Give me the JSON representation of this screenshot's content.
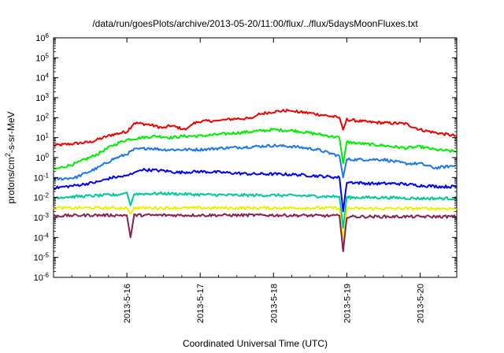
{
  "chart_data": {
    "type": "line",
    "title": "/data/run/goesPlots/archive/2013-05-20/11:00/flux/../flux/5daysMoonFluxes.txt",
    "xlabel": "Coordinated Universal Time (UTC)",
    "ylabel": "protons/cm2-s-sr-MeV",
    "ylabel_parts": {
      "pre": "protons/cm",
      "sup": "2",
      "post": "-s-sr-MeV"
    },
    "yscale": "log",
    "ylim": [
      1e-06,
      1000000.0
    ],
    "xlim": [
      "2013-05-15 00:00",
      "2013-05-20 12:00"
    ],
    "grid": false,
    "x_ticks": [
      "2013-5-16",
      "2013-5-17",
      "2013-5-18",
      "2013-5-19",
      "2013-5-20"
    ],
    "y_ticks": [
      {
        "base": "10",
        "exp": "-6"
      },
      {
        "base": "10",
        "exp": "-5"
      },
      {
        "base": "10",
        "exp": "-4"
      },
      {
        "base": "10",
        "exp": "-3"
      },
      {
        "base": "10",
        "exp": "-2"
      },
      {
        "base": "10",
        "exp": "-1"
      },
      {
        "base": "10",
        "exp": "0"
      },
      {
        "base": "10",
        "exp": "1"
      },
      {
        "base": "10",
        "exp": "2"
      },
      {
        "base": "10",
        "exp": "3"
      },
      {
        "base": "10",
        "exp": "4"
      },
      {
        "base": "10",
        "exp": "5"
      },
      {
        "base": "10",
        "exp": "6"
      }
    ],
    "x_unit": "days since 2013-05-15 00:00 UTC",
    "series": [
      {
        "color": "#ee0000",
        "points": [
          [
            0,
            4
          ],
          [
            0.5,
            6
          ],
          [
            0.8,
            14
          ],
          [
            1.0,
            20
          ],
          [
            1.1,
            55
          ],
          [
            1.3,
            45
          ],
          [
            1.5,
            30
          ],
          [
            1.6,
            40
          ],
          [
            1.8,
            25
          ],
          [
            1.9,
            50
          ],
          [
            2.0,
            65
          ],
          [
            2.2,
            70
          ],
          [
            2.3,
            75
          ],
          [
            2.5,
            90
          ],
          [
            2.7,
            90
          ],
          [
            2.8,
            150
          ],
          [
            3.0,
            200
          ],
          [
            3.2,
            230
          ],
          [
            3.3,
            200
          ],
          [
            3.5,
            170
          ],
          [
            3.7,
            130
          ],
          [
            3.9,
            100
          ],
          [
            3.95,
            25
          ],
          [
            4.0,
            80
          ],
          [
            4.3,
            60
          ],
          [
            4.5,
            55
          ],
          [
            4.8,
            50
          ],
          [
            5.0,
            25
          ],
          [
            5.2,
            18
          ],
          [
            5.5,
            12
          ]
        ]
      },
      {
        "color": "#00ee00",
        "points": [
          [
            0,
            0.25
          ],
          [
            0.3,
            0.5
          ],
          [
            0.6,
            1.5
          ],
          [
            0.8,
            4
          ],
          [
            1.0,
            8
          ],
          [
            1.2,
            10
          ],
          [
            1.4,
            12
          ],
          [
            1.6,
            10
          ],
          [
            1.8,
            12
          ],
          [
            2.0,
            12
          ],
          [
            2.3,
            15
          ],
          [
            2.7,
            20
          ],
          [
            3.0,
            25
          ],
          [
            3.3,
            22
          ],
          [
            3.6,
            15
          ],
          [
            3.9,
            10
          ],
          [
            3.95,
            0.5
          ],
          [
            4.0,
            6
          ],
          [
            4.2,
            5
          ],
          [
            4.5,
            4
          ],
          [
            4.8,
            3
          ],
          [
            5.0,
            3.5
          ],
          [
            5.2,
            2.5
          ],
          [
            5.5,
            2
          ]
        ]
      },
      {
        "color": "#1e78e8",
        "points": [
          [
            0,
            0.08
          ],
          [
            0.3,
            0.1
          ],
          [
            0.6,
            0.3
          ],
          [
            0.8,
            0.8
          ],
          [
            1.0,
            1.5
          ],
          [
            1.1,
            2.5
          ],
          [
            1.3,
            3
          ],
          [
            1.5,
            2.5
          ],
          [
            1.7,
            2.5
          ],
          [
            2.0,
            2.5
          ],
          [
            2.3,
            3
          ],
          [
            2.7,
            3.5
          ],
          [
            3.0,
            4
          ],
          [
            3.3,
            3.5
          ],
          [
            3.6,
            2.5
          ],
          [
            3.9,
            1.2
          ],
          [
            3.95,
            0.1
          ],
          [
            4.0,
            0.8
          ],
          [
            4.3,
            0.8
          ],
          [
            4.5,
            0.8
          ],
          [
            4.8,
            0.5
          ],
          [
            5.0,
            0.5
          ],
          [
            5.2,
            0.3
          ],
          [
            5.5,
            0.4
          ]
        ]
      },
      {
        "color": "#0000ee",
        "points": [
          [
            0,
            0.03
          ],
          [
            0.3,
            0.04
          ],
          [
            0.6,
            0.06
          ],
          [
            0.8,
            0.1
          ],
          [
            1.0,
            0.12
          ],
          [
            1.1,
            0.18
          ],
          [
            1.2,
            0.25
          ],
          [
            1.5,
            0.22
          ],
          [
            1.7,
            0.18
          ],
          [
            2.0,
            0.2
          ],
          [
            2.3,
            0.18
          ],
          [
            2.7,
            0.15
          ],
          [
            3.0,
            0.15
          ],
          [
            3.3,
            0.14
          ],
          [
            3.6,
            0.12
          ],
          [
            3.9,
            0.1
          ],
          [
            3.95,
            0.002
          ],
          [
            4.0,
            0.06
          ],
          [
            4.3,
            0.05
          ],
          [
            4.7,
            0.05
          ],
          [
            5.0,
            0.04
          ],
          [
            5.3,
            0.035
          ],
          [
            5.5,
            0.035
          ]
        ]
      },
      {
        "color": "#00c89a",
        "points": [
          [
            0,
            0.01
          ],
          [
            0.5,
            0.012
          ],
          [
            0.9,
            0.014
          ],
          [
            1.0,
            0.018
          ],
          [
            1.05,
            0.004
          ],
          [
            1.1,
            0.015
          ],
          [
            1.5,
            0.016
          ],
          [
            2.0,
            0.014
          ],
          [
            2.5,
            0.013
          ],
          [
            3.0,
            0.013
          ],
          [
            3.5,
            0.012
          ],
          [
            3.9,
            0.011
          ],
          [
            3.95,
            0.0003
          ],
          [
            4.0,
            0.01
          ],
          [
            4.5,
            0.01
          ],
          [
            5.0,
            0.009
          ],
          [
            5.5,
            0.009
          ]
        ]
      },
      {
        "color": "#eeee00",
        "points": [
          [
            0,
            0.003
          ],
          [
            0.5,
            0.003
          ],
          [
            1.0,
            0.003
          ],
          [
            1.05,
            0.0015
          ],
          [
            1.1,
            0.003
          ],
          [
            2.0,
            0.003
          ],
          [
            3.0,
            0.003
          ],
          [
            3.9,
            0.003
          ],
          [
            3.95,
            5e-05
          ],
          [
            4.0,
            0.0028
          ],
          [
            5.0,
            0.0028
          ],
          [
            5.5,
            0.0028
          ]
        ]
      },
      {
        "color": "#882255",
        "points": [
          [
            0,
            0.0012
          ],
          [
            0.5,
            0.0013
          ],
          [
            1.0,
            0.0013
          ],
          [
            1.05,
            0.0001
          ],
          [
            1.1,
            0.0013
          ],
          [
            2.0,
            0.0013
          ],
          [
            3.0,
            0.0013
          ],
          [
            3.9,
            0.0012
          ],
          [
            3.95,
            2e-05
          ],
          [
            4.0,
            0.0011
          ],
          [
            5.0,
            0.0011
          ],
          [
            5.5,
            0.0011
          ]
        ]
      }
    ]
  }
}
